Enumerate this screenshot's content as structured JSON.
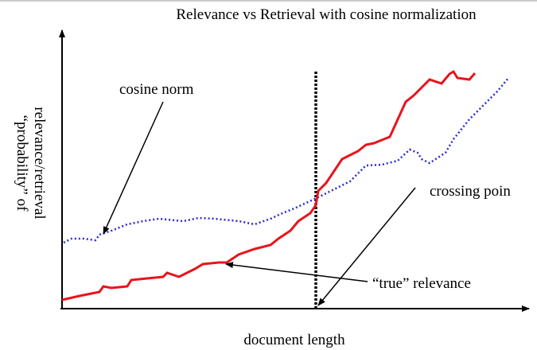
{
  "title": "Relevance vs Retrieval with cosine normalization",
  "y_label": [
    "“probability” of",
    "relevance/retrieval"
  ],
  "x_label": "document length",
  "annotations": {
    "cosine_norm": "cosine norm",
    "crossing_point": "crossing poin",
    "true_relevance": "“true” relevance"
  }
}
